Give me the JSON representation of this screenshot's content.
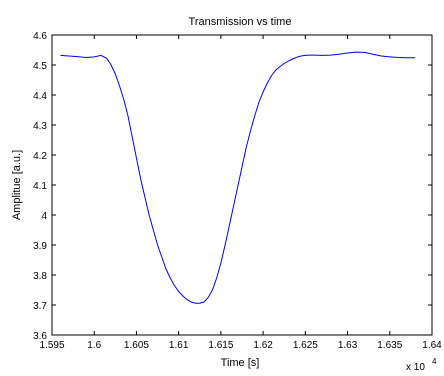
{
  "chart_data": {
    "type": "line",
    "title": "Transmission vs time",
    "xlabel": "Time [s]",
    "ylabel": "Amplitue [a.u.]",
    "x_exponent_label": "x 10",
    "x_exponent_power": "4",
    "xlim": [
      1.595,
      1.64
    ],
    "ylim": [
      3.6,
      4.6
    ],
    "xticks": [
      1.595,
      1.6,
      1.605,
      1.61,
      1.615,
      1.62,
      1.625,
      1.63,
      1.635,
      1.64
    ],
    "xtick_labels": [
      "1.595",
      "1.6",
      "1.605",
      "1.61",
      "1.615",
      "1.62",
      "1.625",
      "1.63",
      "1.635",
      "1.64"
    ],
    "yticks": [
      3.6,
      3.7,
      3.8,
      3.9,
      4.0,
      4.1,
      4.2,
      4.3,
      4.4,
      4.5,
      4.6
    ],
    "ytick_labels": [
      "3.6",
      "3.7",
      "3.8",
      "3.9",
      "4",
      "4.1",
      "4.2",
      "4.3",
      "4.4",
      "4.5",
      "4.6"
    ],
    "grid": false,
    "line_color": "#0000ff",
    "series": [
      {
        "x": [
          1.596,
          1.597,
          1.598,
          1.599,
          1.6,
          1.6008,
          1.6015,
          1.602,
          1.6025,
          1.603,
          1.6035,
          1.604,
          1.6045,
          1.605,
          1.6055,
          1.606,
          1.6065,
          1.607,
          1.6075,
          1.608,
          1.6085,
          1.609,
          1.6095,
          1.61,
          1.6105,
          1.611,
          1.6115,
          1.612,
          1.6125,
          1.613,
          1.6135,
          1.614,
          1.6145,
          1.615,
          1.6155,
          1.616,
          1.6165,
          1.617,
          1.6175,
          1.618,
          1.6185,
          1.619,
          1.6195,
          1.62,
          1.6205,
          1.621,
          1.6215,
          1.622,
          1.6225,
          1.623,
          1.6235,
          1.624,
          1.6245,
          1.625,
          1.6255,
          1.626,
          1.627,
          1.628,
          1.629,
          1.63,
          1.631,
          1.632,
          1.633,
          1.634,
          1.635,
          1.636,
          1.637,
          1.638
        ],
        "y": [
          4.532,
          4.53,
          4.528,
          4.525,
          4.527,
          4.532,
          4.522,
          4.5,
          4.47,
          4.43,
          4.385,
          4.33,
          4.26,
          4.19,
          4.12,
          4.06,
          4.0,
          3.95,
          3.9,
          3.86,
          3.82,
          3.79,
          3.765,
          3.745,
          3.73,
          3.718,
          3.71,
          3.706,
          3.706,
          3.71,
          3.725,
          3.75,
          3.79,
          3.84,
          3.9,
          3.965,
          4.03,
          4.095,
          4.16,
          4.225,
          4.28,
          4.33,
          4.375,
          4.41,
          4.44,
          4.465,
          4.483,
          4.495,
          4.505,
          4.513,
          4.52,
          4.526,
          4.53,
          4.532,
          4.533,
          4.533,
          4.532,
          4.533,
          4.536,
          4.54,
          4.543,
          4.542,
          4.536,
          4.53,
          4.527,
          4.525,
          4.524,
          4.524
        ]
      }
    ]
  }
}
